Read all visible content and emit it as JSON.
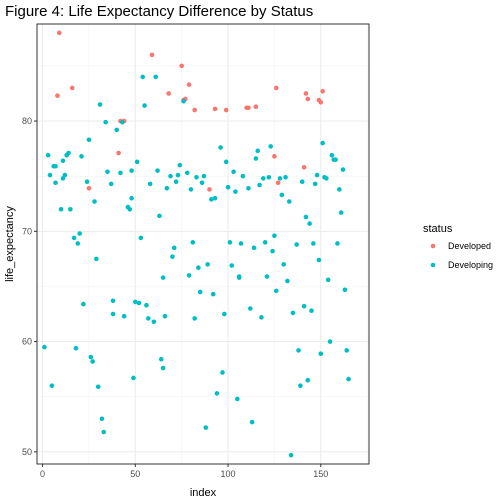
{
  "chart_data": {
    "type": "scatter",
    "title": "Figure 4: Life Expectancy Difference by Status",
    "xlabel": "index",
    "ylabel": "life_expectancy",
    "xlim": [
      -3,
      176
    ],
    "ylim": [
      48.9,
      88.8
    ],
    "x_ticks": [
      0,
      50,
      100,
      150
    ],
    "x_tick_labels": [
      "0",
      "50",
      "100",
      "150"
    ],
    "y_ticks": [
      50,
      60,
      70,
      80
    ],
    "y_tick_labels": [
      "50",
      "60",
      "70",
      "80"
    ],
    "grid": true,
    "legend": {
      "title": "status",
      "position": "right",
      "entries": [
        {
          "label": "Developed",
          "color": "#F8766D"
        },
        {
          "label": "Developing",
          "color": "#00BFC4"
        }
      ]
    },
    "series": [
      {
        "name": "Developed",
        "color": "#F8766D",
        "points": [
          [
            8,
            82.3
          ],
          [
            9,
            88.0
          ],
          [
            16,
            83.0
          ],
          [
            25,
            73.9
          ],
          [
            41,
            77.1
          ],
          [
            42,
            80.0
          ],
          [
            44,
            80.0
          ],
          [
            59,
            86.0
          ],
          [
            68,
            82.5
          ],
          [
            75,
            85.0
          ],
          [
            76,
            81.9
          ],
          [
            77,
            82.0
          ],
          [
            79,
            83.3
          ],
          [
            82,
            81.0
          ],
          [
            90,
            73.8
          ],
          [
            93,
            81.1
          ],
          [
            99,
            81.0
          ],
          [
            110,
            81.2
          ],
          [
            111,
            81.2
          ],
          [
            115,
            81.3
          ],
          [
            125,
            76.8
          ],
          [
            126,
            83.0
          ],
          [
            127,
            74.4
          ],
          [
            141,
            75.8
          ],
          [
            142,
            82.5
          ],
          [
            143,
            82.0
          ],
          [
            149,
            81.9
          ],
          [
            150,
            81.7
          ],
          [
            151,
            82.7
          ]
        ]
      },
      {
        "name": "Developing",
        "color": "#00BFC4",
        "points": [
          [
            1,
            59.5
          ],
          [
            3,
            76.9
          ],
          [
            4,
            75.1
          ],
          [
            5,
            56.0
          ],
          [
            6,
            75.9
          ],
          [
            7,
            74.4
          ],
          [
            7,
            75.9
          ],
          [
            10,
            72.0
          ],
          [
            11,
            76.4
          ],
          [
            11,
            74.8
          ],
          [
            12,
            75.1
          ],
          [
            13,
            76.9
          ],
          [
            14,
            77.1
          ],
          [
            15,
            72.0
          ],
          [
            17,
            69.4
          ],
          [
            18,
            59.4
          ],
          [
            19,
            68.9
          ],
          [
            20,
            69.8
          ],
          [
            21,
            76.8
          ],
          [
            22,
            63.4
          ],
          [
            24,
            74.5
          ],
          [
            25,
            78.3
          ],
          [
            26,
            58.6
          ],
          [
            27,
            58.2
          ],
          [
            28,
            72.7
          ],
          [
            29,
            67.5
          ],
          [
            30,
            55.9
          ],
          [
            31,
            81.5
          ],
          [
            32,
            53.0
          ],
          [
            33,
            51.8
          ],
          [
            34,
            79.9
          ],
          [
            35,
            75.4
          ],
          [
            37,
            74.3
          ],
          [
            38,
            62.5
          ],
          [
            38,
            63.7
          ],
          [
            40,
            79.2
          ],
          [
            42,
            75.3
          ],
          [
            43,
            79.9
          ],
          [
            44,
            62.3
          ],
          [
            46,
            72.2
          ],
          [
            47,
            72.0
          ],
          [
            48,
            73.0
          ],
          [
            48,
            75.5
          ],
          [
            49,
            56.7
          ],
          [
            50,
            63.6
          ],
          [
            51,
            76.3
          ],
          [
            52,
            63.5
          ],
          [
            53,
            69.4
          ],
          [
            54,
            84.0
          ],
          [
            55,
            81.4
          ],
          [
            56,
            63.3
          ],
          [
            57,
            62.1
          ],
          [
            58,
            74.3
          ],
          [
            60,
            61.8
          ],
          [
            61,
            84.0
          ],
          [
            62,
            75.5
          ],
          [
            63,
            71.4
          ],
          [
            64,
            58.4
          ],
          [
            65,
            57.6
          ],
          [
            65,
            65.8
          ],
          [
            66,
            62.3
          ],
          [
            67,
            73.9
          ],
          [
            69,
            75.0
          ],
          [
            70,
            67.7
          ],
          [
            71,
            68.5
          ],
          [
            72,
            74.5
          ],
          [
            73,
            75.1
          ],
          [
            74,
            76.0
          ],
          [
            76,
            81.8
          ],
          [
            78,
            75.3
          ],
          [
            79,
            66.0
          ],
          [
            80,
            73.8
          ],
          [
            81,
            69.0
          ],
          [
            82,
            62.1
          ],
          [
            83,
            74.9
          ],
          [
            84,
            66.7
          ],
          [
            85,
            64.5
          ],
          [
            86,
            74.4
          ],
          [
            87,
            75.0
          ],
          [
            88,
            52.2
          ],
          [
            89,
            67.0
          ],
          [
            91,
            72.9
          ],
          [
            92,
            64.3
          ],
          [
            93,
            73.0
          ],
          [
            94,
            55.3
          ],
          [
            96,
            77.6
          ],
          [
            97,
            57.2
          ],
          [
            98,
            62.5
          ],
          [
            99,
            76.3
          ],
          [
            100,
            74.0
          ],
          [
            101,
            69.0
          ],
          [
            102,
            66.9
          ],
          [
            103,
            75.4
          ],
          [
            104,
            73.6
          ],
          [
            105,
            54.8
          ],
          [
            106,
            65.9
          ],
          [
            106,
            65.8
          ],
          [
            107,
            68.9
          ],
          [
            108,
            75.0
          ],
          [
            111,
            73.9
          ],
          [
            112,
            63.0
          ],
          [
            113,
            52.7
          ],
          [
            114,
            68.5
          ],
          [
            115,
            76.6
          ],
          [
            116,
            77.3
          ],
          [
            117,
            74.2
          ],
          [
            118,
            62.2
          ],
          [
            119,
            74.8
          ],
          [
            120,
            69.0
          ],
          [
            121,
            65.9
          ],
          [
            122,
            74.9
          ],
          [
            123,
            77.7
          ],
          [
            124,
            68.2
          ],
          [
            125,
            69.6
          ],
          [
            126,
            64.6
          ],
          [
            128,
            74.8
          ],
          [
            129,
            73.3
          ],
          [
            130,
            67.0
          ],
          [
            131,
            74.9
          ],
          [
            132,
            65.5
          ],
          [
            133,
            72.7
          ],
          [
            134,
            49.7
          ],
          [
            135,
            62.6
          ],
          [
            137,
            68.8
          ],
          [
            138,
            59.2
          ],
          [
            139,
            56.0
          ],
          [
            140,
            74.5
          ],
          [
            141,
            63.2
          ],
          [
            142,
            71.3
          ],
          [
            143,
            56.5
          ],
          [
            144,
            70.7
          ],
          [
            145,
            62.8
          ],
          [
            146,
            68.9
          ],
          [
            147,
            74.3
          ],
          [
            148,
            75.1
          ],
          [
            149,
            67.4
          ],
          [
            150,
            58.9
          ],
          [
            151,
            78.0
          ],
          [
            152,
            74.9
          ],
          [
            153,
            74.8
          ],
          [
            154,
            65.6
          ],
          [
            155,
            60.0
          ],
          [
            156,
            76.9
          ],
          [
            157,
            76.5
          ],
          [
            158,
            76.5
          ],
          [
            159,
            68.9
          ],
          [
            160,
            73.8
          ],
          [
            161,
            71.7
          ],
          [
            162,
            75.6
          ],
          [
            163,
            64.7
          ],
          [
            164,
            59.2
          ],
          [
            165,
            56.6
          ]
        ]
      }
    ]
  }
}
